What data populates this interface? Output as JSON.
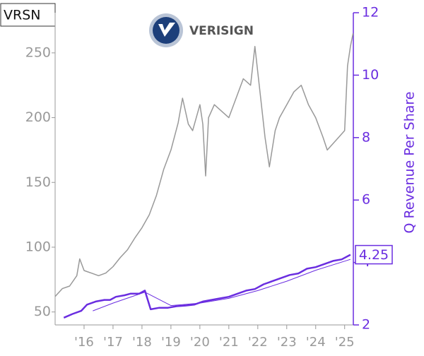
{
  "chart_data": {
    "type": "line",
    "title": "VRSN",
    "logo_text": "VERISIGN",
    "y2_label": "Q Revenue Per Share",
    "xlim": [
      2015.0,
      2025.3
    ],
    "xticks": [
      {
        "value": 2016,
        "label": "'16"
      },
      {
        "value": 2017,
        "label": "'17"
      },
      {
        "value": 2018,
        "label": "'18"
      },
      {
        "value": 2019,
        "label": "'19"
      },
      {
        "value": 2020,
        "label": "'20"
      },
      {
        "value": 2021,
        "label": "'21"
      },
      {
        "value": 2022,
        "label": "'22"
      },
      {
        "value": 2023,
        "label": "'23"
      },
      {
        "value": 2024,
        "label": "'24"
      },
      {
        "value": 2025,
        "label": "'25"
      }
    ],
    "ylim": [
      40,
      281
    ],
    "yticks": [
      50,
      100,
      150,
      200,
      250
    ],
    "y2lim": [
      2,
      12
    ],
    "y2ticks": [
      2,
      4,
      6,
      8,
      10,
      12
    ],
    "series": [
      {
        "color": "#999999",
        "axis": "y",
        "width": 1.5,
        "x": [
          2015.0,
          2015.25,
          2015.5,
          2015.75,
          2015.85,
          2016.0,
          2016.25,
          2016.5,
          2016.75,
          2017.0,
          2017.25,
          2017.5,
          2017.75,
          2018.0,
          2018.25,
          2018.5,
          2018.75,
          2019.0,
          2019.25,
          2019.4,
          2019.6,
          2019.75,
          2020.0,
          2020.1,
          2020.2,
          2020.3,
          2020.5,
          2020.75,
          2021.0,
          2021.25,
          2021.5,
          2021.75,
          2021.9,
          2022.1,
          2022.25,
          2022.4,
          2022.6,
          2022.75,
          2023.0,
          2023.25,
          2023.5,
          2023.75,
          2024.0,
          2024.25,
          2024.4,
          2024.6,
          2024.8,
          2025.0,
          2025.1,
          2025.2,
          2025.29
        ],
        "values": [
          62,
          68,
          70,
          78,
          91,
          82,
          80,
          78,
          80,
          85,
          92,
          98,
          107,
          115,
          125,
          140,
          160,
          175,
          196,
          215,
          195,
          190,
          210,
          195,
          155,
          200,
          210,
          205,
          200,
          215,
          230,
          225,
          255,
          215,
          185,
          162,
          190,
          200,
          210,
          220,
          225,
          210,
          200,
          185,
          175,
          180,
          185,
          190,
          240,
          255,
          265
        ]
      },
      {
        "color": "#6a2de0",
        "axis": "y2",
        "width": 2.5,
        "x": [
          2015.3,
          2015.6,
          2015.9,
          2016.1,
          2016.4,
          2016.7,
          2016.9,
          2017.1,
          2017.4,
          2017.6,
          2017.9,
          2018.1,
          2018.3,
          2018.6,
          2018.9,
          2019.2,
          2019.5,
          2019.8,
          2020.1,
          2020.4,
          2020.7,
          2021.0,
          2021.3,
          2021.6,
          2021.9,
          2022.2,
          2022.5,
          2022.8,
          2023.1,
          2023.4,
          2023.7,
          2024.0,
          2024.3,
          2024.6,
          2024.9,
          2025.2
        ],
        "values": [
          2.23,
          2.35,
          2.45,
          2.65,
          2.75,
          2.8,
          2.8,
          2.9,
          2.95,
          3.0,
          3.0,
          3.1,
          2.5,
          2.55,
          2.55,
          2.6,
          2.62,
          2.65,
          2.75,
          2.8,
          2.85,
          2.9,
          3.0,
          3.1,
          3.15,
          3.3,
          3.4,
          3.5,
          3.6,
          3.65,
          3.8,
          3.85,
          3.95,
          4.05,
          4.1,
          4.25
        ]
      },
      {
        "color": "#6a2de0",
        "axis": "y2",
        "width": 1,
        "x": [
          2016.3,
          2017.0,
          2018.1,
          2019.0,
          2020.0,
          2021.0,
          2022.0,
          2023.0,
          2024.0,
          2025.2
        ],
        "values": [
          2.45,
          2.7,
          3.05,
          2.62,
          2.7,
          2.85,
          3.1,
          3.4,
          3.75,
          4.1
        ]
      }
    ]
  }
}
